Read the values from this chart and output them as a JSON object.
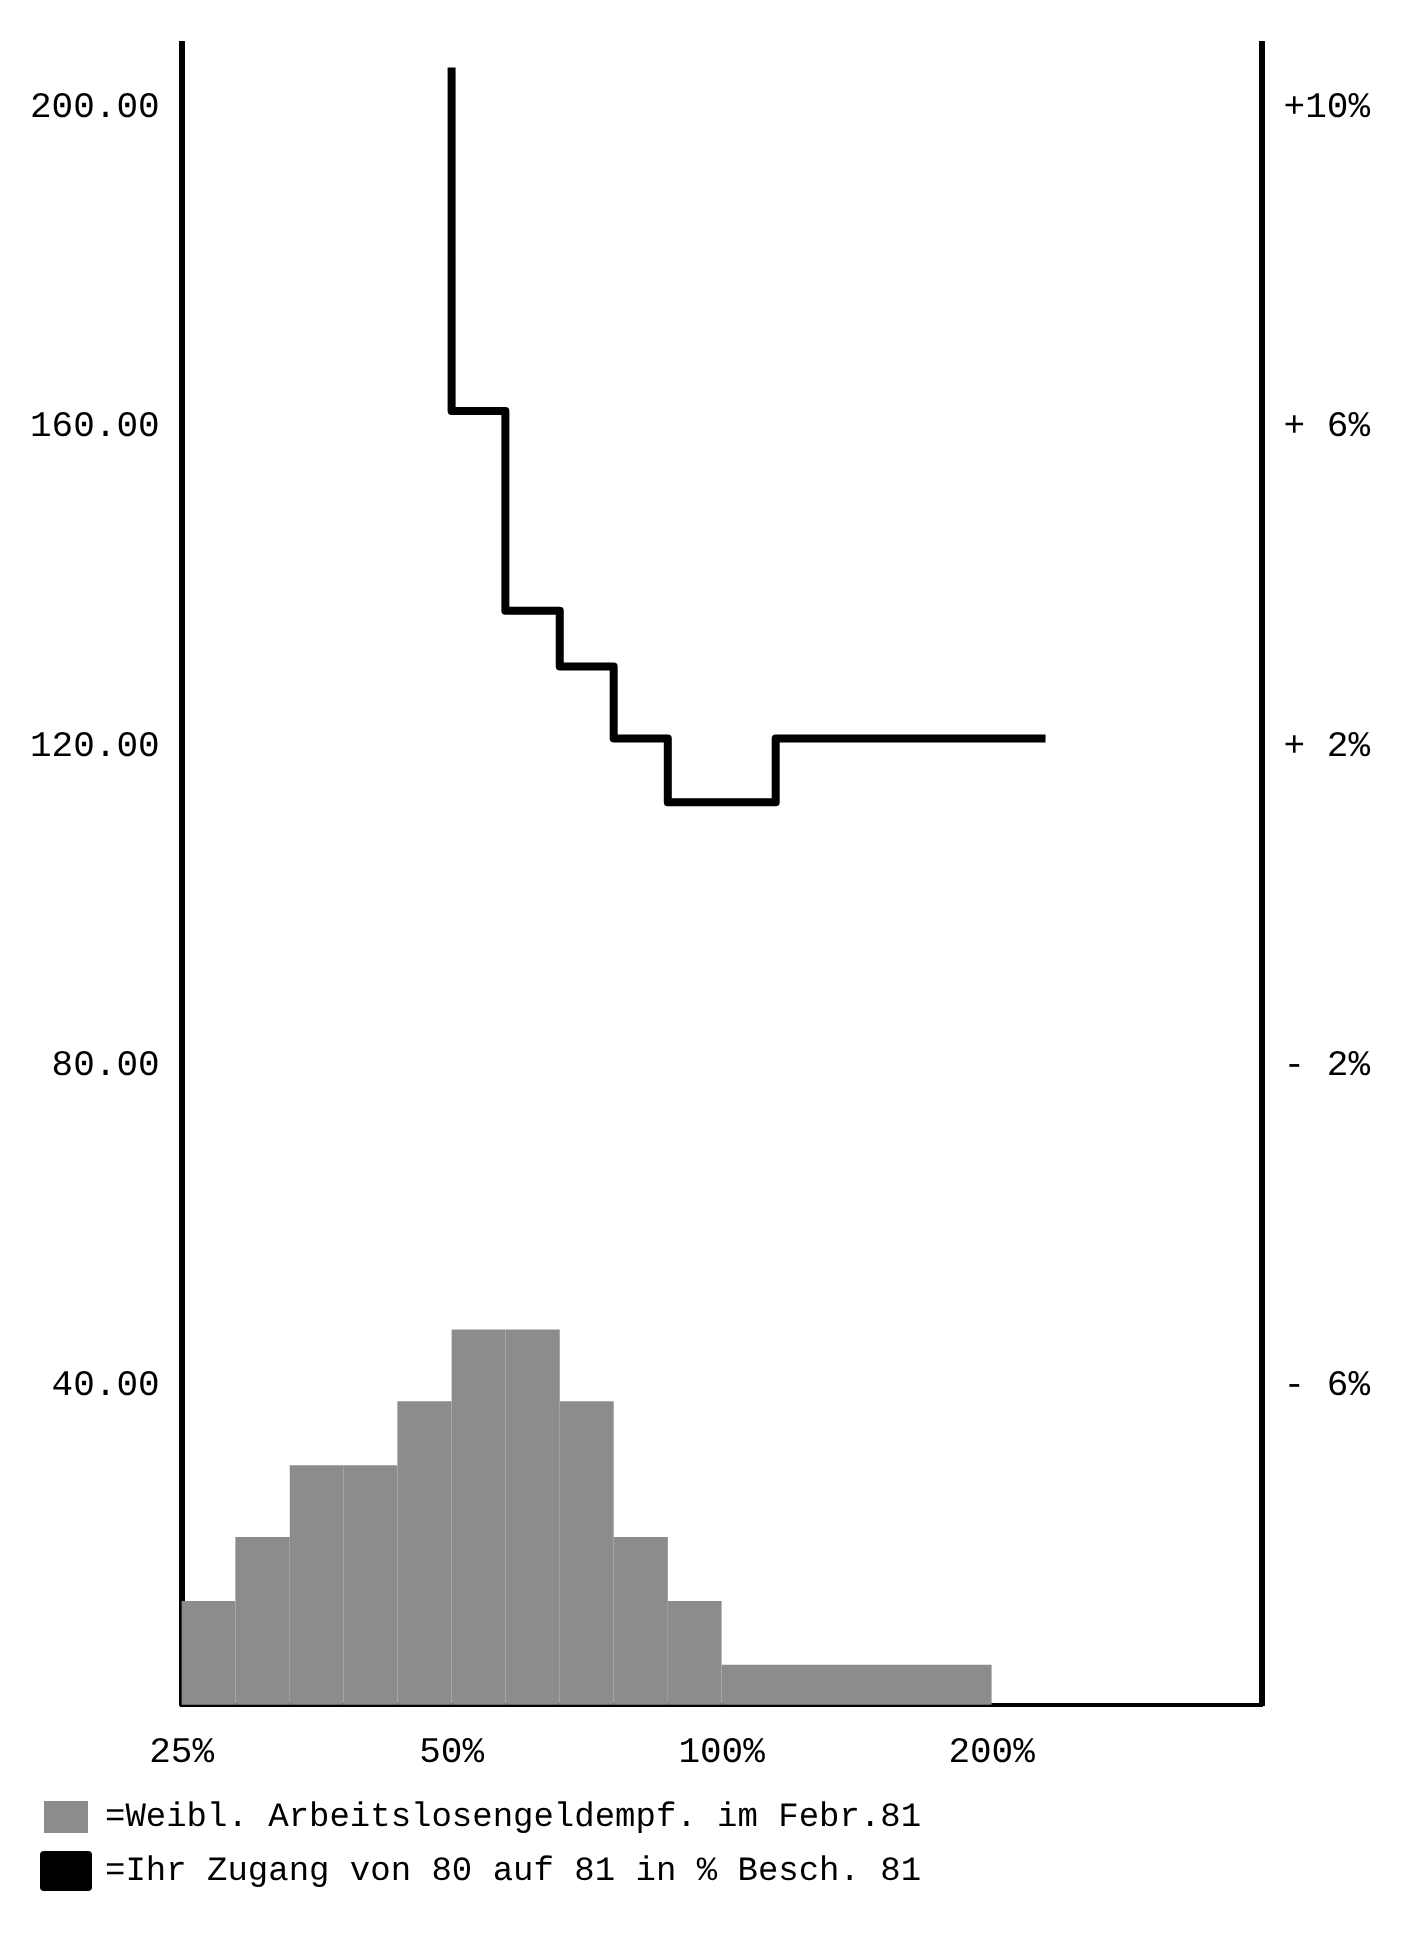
{
  "chart_data": {
    "type": "histogram",
    "bins": [
      25,
      28.7,
      33,
      37.9,
      43.5,
      50,
      57.4,
      66,
      75.8,
      87.1,
      100,
      200
    ],
    "series": [
      {
        "name": "=Weibl. Arbeitslosengeldempf. im Febr.81",
        "color": "#8c8c8c",
        "values": [
          13,
          21,
          30,
          30,
          38,
          47,
          47,
          38,
          21,
          13,
          5
        ]
      },
      {
        "type": "step",
        "axis": "y2",
        "name": "=Ihr Zugang von 80 auf 81 in % Besch. 81",
        "color": "#000000",
        "x": [
          50,
          57.4,
          66,
          75.8,
          87.1,
          114.9,
          174.1,
          229.7
        ],
        "values": [
          10.5,
          6.2,
          3.7,
          3.0,
          2.1,
          1.3,
          2.1,
          2.1
        ]
      }
    ],
    "log": "x",
    "xlim": [
      25,
      400
    ],
    "xticks": [
      {
        "value": 25,
        "label": "25%"
      },
      {
        "value": 50,
        "label": "50%"
      },
      {
        "value": 100,
        "label": "100%"
      },
      {
        "value": 200,
        "label": "200%"
      }
    ],
    "ylim": [
      0,
      208
    ],
    "yticks": [
      {
        "value": 40,
        "label": "40.00"
      },
      {
        "value": 80,
        "label": "80.00"
      },
      {
        "value": 120,
        "label": "120.00"
      },
      {
        "value": 160,
        "label": "160.00"
      },
      {
        "value": 200,
        "label": "200.00"
      }
    ],
    "y2lim": [
      -10,
      10.8
    ],
    "y2ticks": [
      {
        "value": -6,
        "label": "- 6%"
      },
      {
        "value": -2,
        "label": "- 2%"
      },
      {
        "value": 2,
        "label": "+ 2%"
      },
      {
        "value": 6,
        "label": "+ 6%"
      },
      {
        "value": 10,
        "label": "+10%"
      }
    ],
    "grid": false,
    "legend": "bottom"
  }
}
